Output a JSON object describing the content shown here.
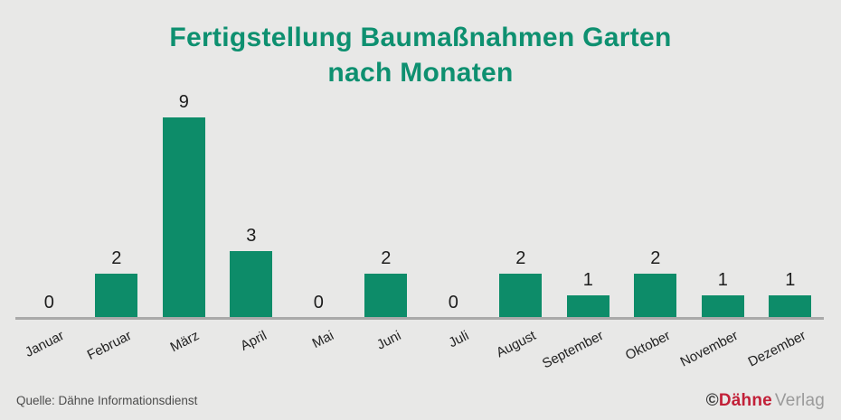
{
  "title": {
    "line1": "Fertigstellung Baumaßnahmen Garten",
    "line2": "nach Monaten"
  },
  "chart_data": {
    "type": "bar",
    "title": "Fertigstellung Baumaßnahmen Garten nach Monaten",
    "categories": [
      "Januar",
      "Februar",
      "März",
      "April",
      "Mai",
      "Juni",
      "Juli",
      "August",
      "September",
      "Oktober",
      "November",
      "Dezember"
    ],
    "values": [
      0,
      2,
      9,
      3,
      0,
      2,
      0,
      2,
      1,
      2,
      1,
      1
    ],
    "xlabel": "",
    "ylabel": "",
    "ylim": [
      0,
      9
    ],
    "grid": false,
    "legend": false,
    "value_labels_shown": true,
    "bar_color": "#0d8c69",
    "axis_color": "#a9a9a9",
    "value_label_color": "#1c1c1c"
  },
  "footer": {
    "source": "Quelle: Dähne Informationsdienst",
    "logo": {
      "copyright": "©",
      "brand": "Dähne",
      "suffix": "Verlag",
      "brand_color": "#c22038",
      "suffix_color": "#9a9a9a"
    }
  },
  "colors": {
    "background": "#e8e8e7",
    "title": "#0e9070"
  }
}
